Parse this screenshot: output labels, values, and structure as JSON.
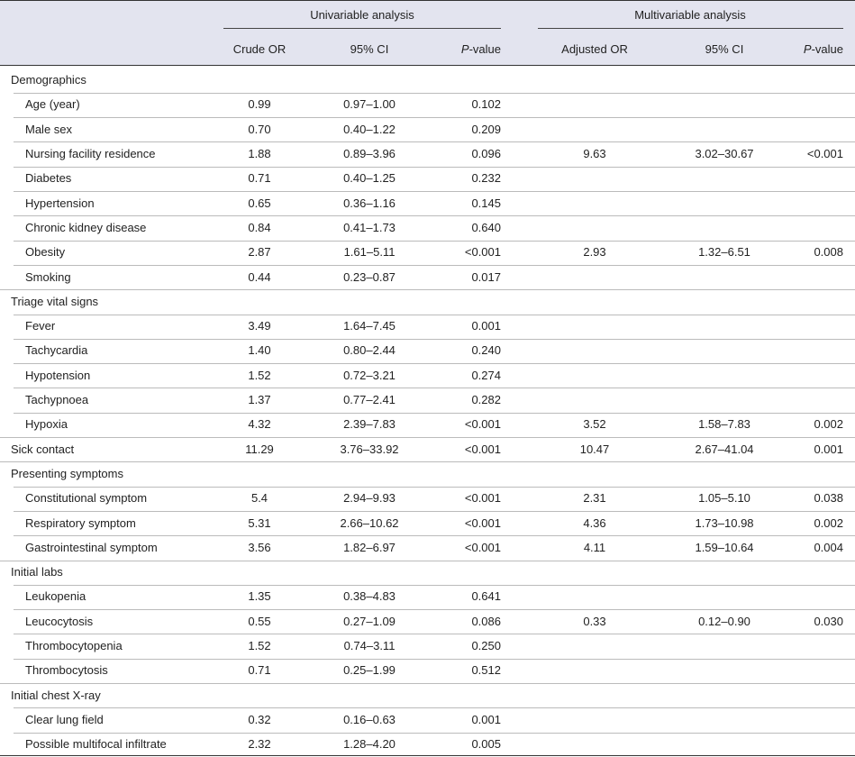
{
  "table": {
    "header": {
      "groups": [
        "Univariable analysis",
        "Multivariable analysis"
      ],
      "columns": [
        "Crude OR",
        "95% CI",
        "P-value",
        "Adjusted OR",
        "95% CI",
        "P-value"
      ]
    },
    "rows": [
      {
        "label": "Demographics"
      },
      {
        "label": "Age (year)",
        "indent": true,
        "values": [
          "0.99",
          "0.97–1.00",
          "0.102",
          null,
          null,
          null
        ]
      },
      {
        "label": "Male sex",
        "indent": true,
        "values": [
          "0.70",
          "0.40–1.22",
          "0.209",
          null,
          null,
          null
        ]
      },
      {
        "label": "Nursing facility residence",
        "indent": true,
        "values": [
          "1.88",
          "0.89–3.96",
          "0.096",
          "9.63",
          "3.02–30.67",
          "<0.001"
        ]
      },
      {
        "label": "Diabetes",
        "indent": true,
        "values": [
          "0.71",
          "0.40–1.25",
          "0.232",
          null,
          null,
          null
        ]
      },
      {
        "label": "Hypertension",
        "indent": true,
        "values": [
          "0.65",
          "0.36–1.16",
          "0.145",
          null,
          null,
          null
        ]
      },
      {
        "label": "Chronic kidney disease",
        "indent": true,
        "values": [
          "0.84",
          "0.41–1.73",
          "0.640",
          null,
          null,
          null
        ]
      },
      {
        "label": "Obesity",
        "indent": true,
        "values": [
          "2.87",
          "1.61–5.11",
          "<0.001",
          "2.93",
          "1.32–6.51",
          "0.008"
        ]
      },
      {
        "label": "Smoking",
        "indent": true,
        "values": [
          "0.44",
          "0.23–0.87",
          "0.017",
          null,
          null,
          null
        ]
      },
      {
        "label": "Triage vital signs"
      },
      {
        "label": "Fever",
        "indent": true,
        "values": [
          "3.49",
          "1.64–7.45",
          "0.001",
          null,
          null,
          null
        ]
      },
      {
        "label": "Tachycardia",
        "indent": true,
        "values": [
          "1.40",
          "0.80–2.44",
          "0.240",
          null,
          null,
          null
        ]
      },
      {
        "label": "Hypotension",
        "indent": true,
        "values": [
          "1.52",
          "0.72–3.21",
          "0.274",
          null,
          null,
          null
        ]
      },
      {
        "label": "Tachypnoea",
        "indent": true,
        "values": [
          "1.37",
          "0.77–2.41",
          "0.282",
          null,
          null,
          null
        ]
      },
      {
        "label": "Hypoxia",
        "indent": true,
        "values": [
          "4.32",
          "2.39–7.83",
          "<0.001",
          "3.52",
          "1.58–7.83",
          "0.002"
        ]
      },
      {
        "label": "Sick contact",
        "values": [
          "11.29",
          "3.76–33.92",
          "<0.001",
          "10.47",
          "2.67–41.04",
          "0.001"
        ]
      },
      {
        "label": "Presenting symptoms"
      },
      {
        "label": "Constitutional symptom",
        "indent": true,
        "values": [
          "5.4",
          "2.94–9.93",
          "<0.001",
          "2.31",
          "1.05–5.10",
          "0.038"
        ]
      },
      {
        "label": "Respiratory symptom",
        "indent": true,
        "values": [
          "5.31",
          "2.66–10.62",
          "<0.001",
          "4.36",
          "1.73–10.98",
          "0.002"
        ]
      },
      {
        "label": "Gastrointestinal symptom",
        "indent": true,
        "values": [
          "3.56",
          "1.82–6.97",
          "<0.001",
          "4.11",
          "1.59–10.64",
          "0.004"
        ]
      },
      {
        "label": "Initial labs"
      },
      {
        "label": "Leukopenia",
        "indent": true,
        "values": [
          "1.35",
          "0.38–4.83",
          "0.641",
          null,
          null,
          null
        ]
      },
      {
        "label": "Leucocytosis",
        "indent": true,
        "values": [
          "0.55",
          "0.27–1.09",
          "0.086",
          "0.33",
          "0.12–0.90",
          "0.030"
        ]
      },
      {
        "label": "Thrombocytopenia",
        "indent": true,
        "values": [
          "1.52",
          "0.74–3.11",
          "0.250",
          null,
          null,
          null
        ]
      },
      {
        "label": "Thrombocytosis",
        "indent": true,
        "values": [
          "0.71",
          "0.25–1.99",
          "0.512",
          null,
          null,
          null
        ]
      },
      {
        "label": "Initial chest X-ray"
      },
      {
        "label": "Clear lung field",
        "indent": true,
        "values": [
          "0.32",
          "0.16–0.63",
          "0.001",
          null,
          null,
          null
        ]
      },
      {
        "label": "Possible multifocal infiltrate",
        "indent": true,
        "values": [
          "2.32",
          "1.28–4.20",
          "0.005",
          null,
          null,
          null
        ]
      }
    ]
  }
}
